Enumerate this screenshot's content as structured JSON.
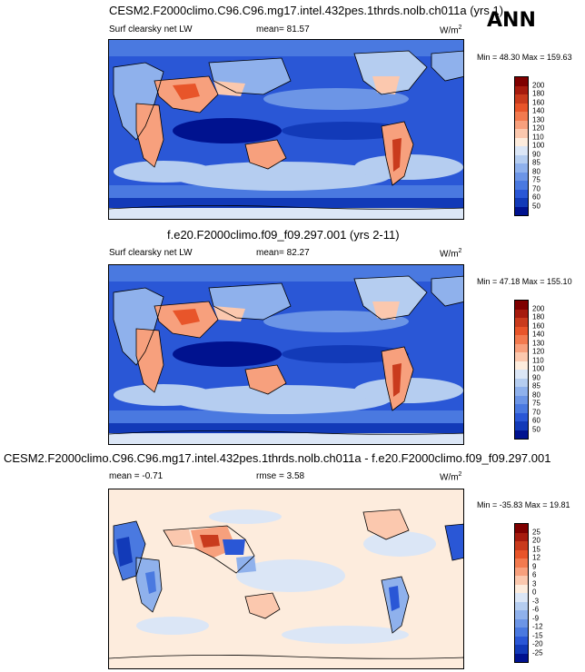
{
  "season": "ANN",
  "panels": [
    {
      "title": "CESM2.F2000climo.C96.C96.mg17.intel.432pes.1thrds.nolb.ch011a (yrs 1)",
      "left_label": "Surf clearsky net LW",
      "center_label": "mean=  81.57",
      "right_label": "",
      "units": "W/m",
      "units_exp": "2",
      "minmax": "Min =  48.30 Max = 159.63",
      "colorbar": {
        "levels": [
          "200",
          "180",
          "160",
          "140",
          "130",
          "120",
          "110",
          "100",
          "90",
          "85",
          "80",
          "75",
          "70",
          "60",
          "50"
        ],
        "colors": [
          "#7f0000",
          "#a61b0e",
          "#c93b1d",
          "#e8552a",
          "#f27a4f",
          "#f7a07d",
          "#fbc8ae",
          "#fdecdd",
          "#dbe6f6",
          "#b5cdf0",
          "#8fb1ec",
          "#6c95e6",
          "#4a79e0",
          "#2a57d6",
          "#123ab8",
          "#00128f"
        ]
      }
    },
    {
      "title": "f.e20.F2000climo.f09_f09.297.001 (yrs 2-11)",
      "left_label": "Surf clearsky net LW",
      "center_label": "mean=  82.27",
      "right_label": "",
      "units": "W/m",
      "units_exp": "2",
      "minmax": "Min =  47.18 Max = 155.10",
      "colorbar": {
        "levels": [
          "200",
          "180",
          "160",
          "140",
          "130",
          "120",
          "110",
          "100",
          "90",
          "85",
          "80",
          "75",
          "70",
          "60",
          "50"
        ],
        "colors": [
          "#7f0000",
          "#a61b0e",
          "#c93b1d",
          "#e8552a",
          "#f27a4f",
          "#f7a07d",
          "#fbc8ae",
          "#fdecdd",
          "#dbe6f6",
          "#b5cdf0",
          "#8fb1ec",
          "#6c95e6",
          "#4a79e0",
          "#2a57d6",
          "#123ab8",
          "#00128f"
        ]
      }
    },
    {
      "title": "CESM2.F2000climo.C96.C96.mg17.intel.432pes.1thrds.nolb.ch011a - f.e20.F2000climo.f09_f09.297.001",
      "left_label": "mean =  -0.71",
      "center_label": "rmse =   3.58",
      "right_label": "",
      "units": "W/m",
      "units_exp": "2",
      "minmax": "Min = -35.83 Max =  19.81",
      "colorbar": {
        "levels": [
          "25",
          "20",
          "15",
          "12",
          "9",
          "6",
          "3",
          "0",
          "-3",
          "-6",
          "-9",
          "-12",
          "-15",
          "-20",
          "-25"
        ],
        "colors": [
          "#7f0000",
          "#a61b0e",
          "#c93b1d",
          "#e8552a",
          "#f27a4f",
          "#f7a07d",
          "#fbc8ae",
          "#fdecdd",
          "#dbe6f6",
          "#b5cdf0",
          "#8fb1ec",
          "#6c95e6",
          "#4a79e0",
          "#2a57d6",
          "#123ab8",
          "#00128f"
        ]
      }
    }
  ]
}
